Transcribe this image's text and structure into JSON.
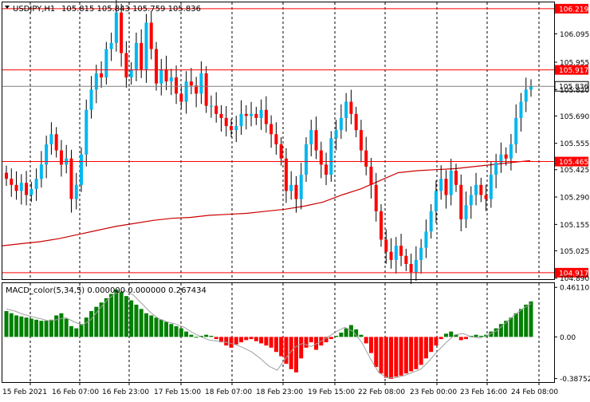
{
  "window": {
    "symbol_label": "USDJPY,H1",
    "ohlc_label": "105.815 105.843 105.759 105.836",
    "dropdown_icon": "triangle-down-icon"
  },
  "colors": {
    "bull_candle": "#00b7ef",
    "bear_candle": "#ff0000",
    "wick": "#000000",
    "ma_line": "#cc0000",
    "level_line": "#ff0000",
    "macd_positive": "#008000",
    "macd_negative": "#ff0000",
    "signal_line": "#a0a0a0",
    "grid": "#000000",
    "label_background": "#ff0000",
    "label_text": "#ffffff",
    "current_price_background": "#ffffff"
  },
  "chart_data": [
    {
      "type": "candlestick",
      "title": "USDJPY,H1",
      "y_axis": {
        "ticks": [
          "106.095",
          "105.955",
          "105.820",
          "105.690",
          "105.555",
          "105.425",
          "105.290",
          "105.155",
          "105.025",
          "104.890"
        ],
        "ylim": [
          104.885,
          106.25
        ]
      },
      "x_axis": {
        "ticks": [
          "15 Feb 2021",
          "16 Feb 07:00",
          "16 Feb 23:00",
          "17 Feb 15:00",
          "18 Feb 07:00",
          "18 Feb 23:00",
          "19 Feb 15:00",
          "22 Feb 08:00",
          "23 Feb 00:00",
          "23 Feb 16:00",
          "24 Feb 08:00"
        ]
      },
      "grid": "vertical-dashed",
      "levels": [
        {
          "label": "106.219",
          "value": 106.219
        },
        {
          "label": "105.917",
          "value": 105.917
        },
        {
          "label": "105.465",
          "value": 105.465
        },
        {
          "label": "104.917",
          "value": 104.917
        }
      ],
      "current_price": {
        "label": "105.836",
        "value": 105.836
      },
      "moving_average": [
        105.05,
        105.06,
        105.07,
        105.085,
        105.105,
        105.125,
        105.145,
        105.16,
        105.175,
        105.185,
        105.19,
        105.2,
        105.205,
        105.21,
        105.22,
        105.23,
        105.245,
        105.265,
        105.3,
        105.33,
        105.37,
        105.41,
        105.42,
        105.425,
        105.43,
        105.44,
        105.45,
        105.46,
        105.47
      ],
      "closes": [
        105.38,
        105.35,
        105.32,
        105.36,
        105.3,
        105.33,
        105.38,
        105.45,
        105.55,
        105.6,
        105.52,
        105.45,
        105.48,
        105.28,
        105.35,
        105.5,
        105.72,
        105.82,
        105.9,
        105.88,
        106.02,
        106.05,
        106.2,
        106.0,
        105.88,
        105.92,
        106.05,
        105.92,
        106.15,
        106.02,
        105.85,
        105.92,
        105.86,
        105.88,
        105.8,
        105.76,
        105.86,
        105.84,
        105.8,
        105.9,
        105.74,
        105.74,
        105.7,
        105.68,
        105.64,
        105.62,
        105.64,
        105.7,
        105.69,
        105.7,
        105.68,
        105.72,
        105.65,
        105.6,
        105.55,
        105.48,
        105.32,
        105.35,
        105.28,
        105.4,
        105.55,
        105.62,
        105.52,
        105.45,
        105.4,
        105.58,
        105.62,
        105.68,
        105.76,
        105.7,
        105.62,
        105.52,
        105.44,
        105.35,
        105.22,
        105.08,
        105.02,
        104.98,
        105.05,
        105.0,
        104.96,
        104.92,
        104.98,
        105.04,
        105.12,
        105.22,
        105.32,
        105.38,
        105.3,
        105.42,
        105.35,
        105.18,
        105.25,
        105.3,
        105.35,
        105.3,
        105.28,
        105.4,
        105.46,
        105.5,
        105.48,
        105.55,
        105.68,
        105.76,
        105.82,
        105.836
      ]
    },
    {
      "type": "bar",
      "title": "MACD_color(5,34,5) 0.000000 0.000000 0.267434",
      "y_axis": {
        "ticks": [
          "0.461103",
          "0.00",
          "-0.387527"
        ],
        "ylim": [
          -0.42,
          0.5
        ]
      },
      "positive_color": "#008000",
      "negative_color": "#ff0000",
      "values": [
        0.24,
        0.22,
        0.2,
        0.19,
        0.18,
        0.17,
        0.16,
        0.15,
        0.15,
        0.16,
        0.2,
        0.22,
        0.17,
        0.1,
        0.08,
        0.12,
        0.18,
        0.24,
        0.28,
        0.32,
        0.36,
        0.4,
        0.44,
        0.42,
        0.38,
        0.34,
        0.3,
        0.26,
        0.22,
        0.2,
        0.18,
        0.16,
        0.14,
        0.12,
        0.1,
        0.08,
        0.05,
        0.02,
        0.0,
        0.01,
        0.02,
        0.01,
        -0.02,
        -0.05,
        -0.08,
        -0.1,
        -0.07,
        -0.05,
        -0.03,
        -0.02,
        -0.04,
        -0.06,
        -0.08,
        -0.1,
        -0.14,
        -0.18,
        -0.25,
        -0.3,
        -0.33,
        -0.2,
        -0.1,
        -0.05,
        -0.12,
        -0.08,
        -0.05,
        -0.02,
        0.01,
        0.04,
        0.08,
        0.11,
        0.07,
        0.02,
        -0.06,
        -0.15,
        -0.28,
        -0.34,
        -0.38,
        -0.39,
        -0.37,
        -0.36,
        -0.34,
        -0.32,
        -0.3,
        -0.26,
        -0.2,
        -0.14,
        -0.08,
        -0.02,
        0.03,
        0.05,
        0.02,
        -0.03,
        -0.02,
        0.01,
        0.02,
        0.01,
        0.02,
        0.05,
        0.08,
        0.12,
        0.15,
        0.18,
        0.22,
        0.26,
        0.3,
        0.33
      ],
      "signal": [
        0.26,
        0.24,
        0.21,
        0.19,
        0.17,
        0.15,
        0.16,
        0.18,
        0.14,
        0.11,
        0.16,
        0.26,
        0.35,
        0.41,
        0.43,
        0.39,
        0.31,
        0.23,
        0.17,
        0.14,
        0.12,
        0.09,
        0.04,
        0.0,
        -0.03,
        -0.04,
        -0.05,
        -0.07,
        -0.1,
        -0.14,
        -0.2,
        -0.27,
        -0.31,
        -0.2,
        -0.1,
        -0.06,
        -0.09,
        -0.05,
        0.0,
        0.05,
        0.09,
        0.05,
        -0.05,
        -0.2,
        -0.33,
        -0.38,
        -0.38,
        -0.36,
        -0.33,
        -0.3,
        -0.22,
        -0.13,
        -0.05,
        0.02,
        0.03,
        0.0,
        -0.01,
        0.02,
        0.06,
        0.13,
        0.2,
        0.26,
        0.31
      ]
    }
  ]
}
